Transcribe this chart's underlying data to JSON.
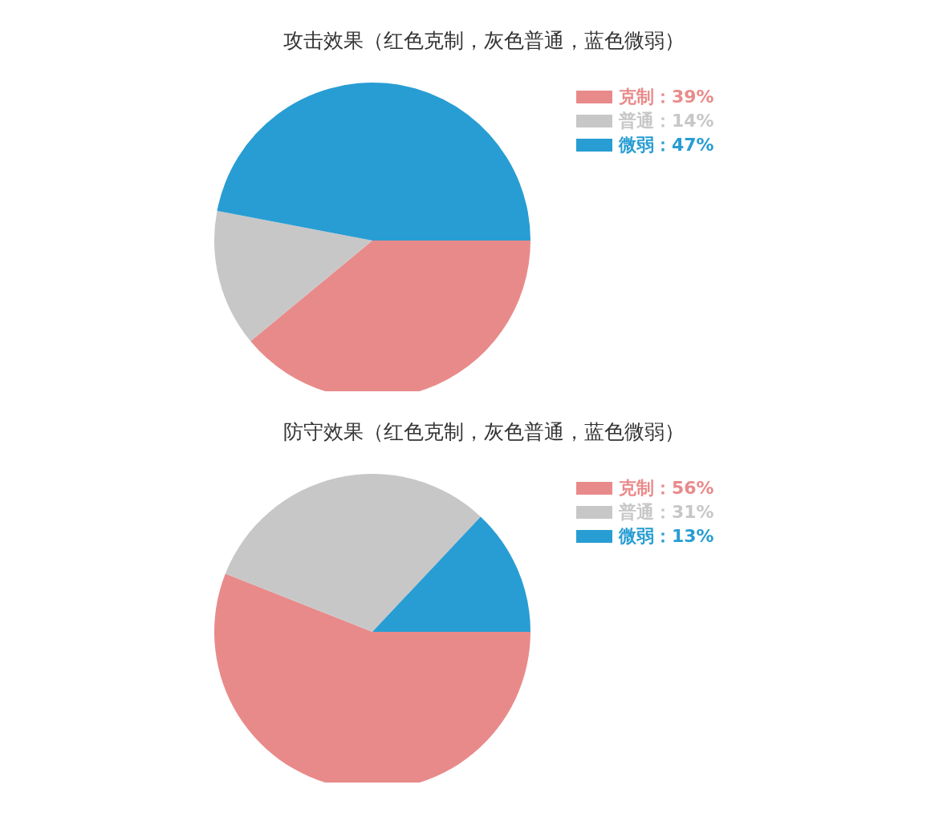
{
  "chart_data": [
    {
      "type": "pie",
      "title": "攻击效果（红色克制，灰色普通，蓝色微弱）",
      "categories": [
        "克制",
        "普通",
        "微弱"
      ],
      "values": [
        39,
        14,
        47
      ],
      "value_labels": [
        "：39%",
        "：14%",
        "：47%"
      ],
      "colors": [
        "#e98a8a",
        "#c8c7c8",
        "#289dd3"
      ],
      "legend": "top right"
    },
    {
      "type": "pie",
      "title": "防守效果（红色克制，灰色普通，蓝色微弱）",
      "categories": [
        "克制",
        "普通",
        "微弱"
      ],
      "values": [
        56,
        31,
        13
      ],
      "value_labels": [
        "：56%",
        "：31%",
        "：13%"
      ],
      "colors": [
        "#e98a8a",
        "#c8c7c8",
        "#289dd3"
      ],
      "legend": "top right"
    }
  ]
}
